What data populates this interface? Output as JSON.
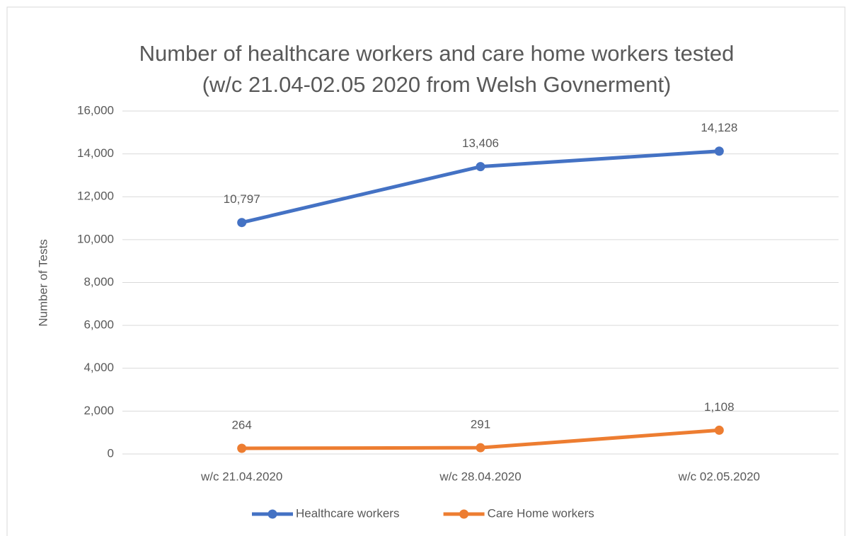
{
  "chart_data": {
    "type": "line",
    "title": [
      "Number of healthcare workers and care home workers tested",
      "(w/c 21.04-02.05 2020 from Welsh Govnerment)"
    ],
    "y_label": "Number of Tests",
    "categories": [
      "w/c 21.04.2020",
      "w/c 28.04.2020",
      "w/c 02.05.2020"
    ],
    "series": [
      {
        "name": "Healthcare workers",
        "color": "#4472c4",
        "values": [
          10797,
          13406,
          14128
        ],
        "value_labels": [
          "10,797",
          "13,406",
          "14,128"
        ]
      },
      {
        "name": "Care Home workers",
        "color": "#ed7d31",
        "values": [
          264,
          291,
          1108
        ],
        "value_labels": [
          "264",
          "291",
          "1,108"
        ]
      }
    ],
    "ylim": [
      0,
      16000
    ],
    "yticks": [
      0,
      {
        "value": 2000,
        "label": "2,000"
      },
      {
        "value": 4000,
        "label": "4,000"
      },
      {
        "value": 6000,
        "label": "6,000"
      },
      {
        "value": 8000,
        "label": "8,000"
      },
      {
        "value": 10000,
        "label": "10,000"
      },
      {
        "value": 12000,
        "label": "12,000"
      },
      {
        "value": 14000,
        "label": "14,000"
      },
      {
        "value": 16000,
        "label": "16,000"
      }
    ],
    "grid": true,
    "legend": "bottom"
  }
}
